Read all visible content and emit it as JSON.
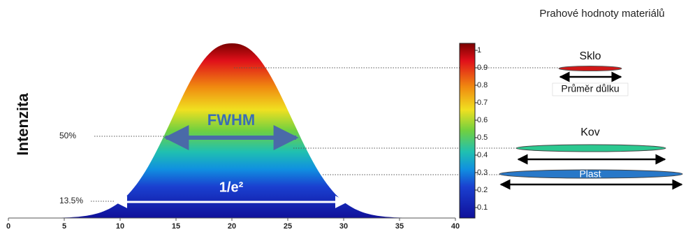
{
  "header": {
    "title": "Prahové hodnoty materiálů"
  },
  "y_label": "Intenzita",
  "x_ticks": [
    0,
    5,
    10,
    15,
    20,
    25,
    30,
    35,
    40
  ],
  "colorbar_ticks": [
    1,
    0.9,
    0.8,
    0.7,
    0.6,
    0.5,
    0.4,
    0.3,
    0.2,
    0.1
  ],
  "levels": {
    "half": "50%",
    "e2": "13.5%"
  },
  "widths": {
    "fwhm": "FWHM",
    "e2": "1/e²"
  },
  "materials": {
    "glass": "Sklo",
    "crater": "Průměr důlku",
    "metal": "Kov",
    "plastic": "Plast"
  }
}
